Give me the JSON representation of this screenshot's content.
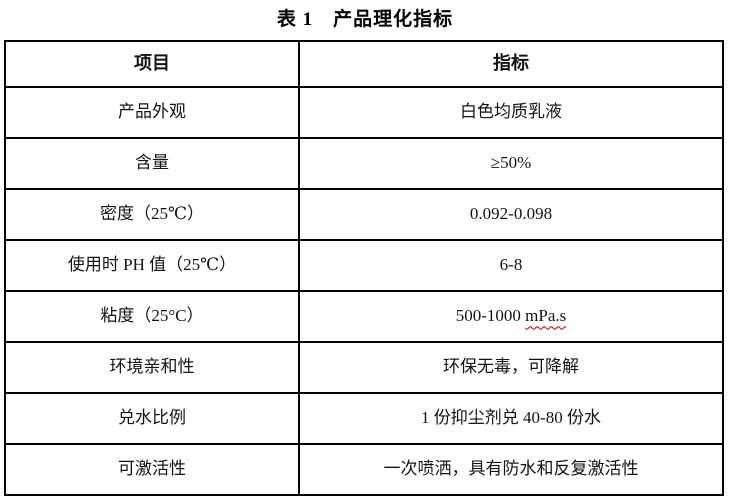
{
  "page": {
    "title": "表 1　产品理化指标"
  },
  "table": {
    "columns": [
      "项目",
      "指标"
    ],
    "rows": [
      {
        "item": "产品外观",
        "value": "白色均质乳液"
      },
      {
        "item": "含量",
        "value": "≥50%"
      },
      {
        "item": "密度（25℃）",
        "value": "0.092-0.098"
      },
      {
        "item": "使用时 PH 值（25℃）",
        "value": "6-8"
      },
      {
        "item": "粘度（25°C）",
        "value": "500-1000 mPa.s",
        "spellcheck_substring": "mPa.s"
      },
      {
        "item": "环境亲和性",
        "value": "环保无毒，可降解"
      },
      {
        "item": "兑水比例",
        "value": "1 份抑尘剂兑 40-80 份水"
      },
      {
        "item": "可激活性",
        "value": "一次喷洒，具有防水和反复激活性"
      }
    ],
    "spellcheck_color": "#b00000",
    "border_color": "#000000"
  }
}
